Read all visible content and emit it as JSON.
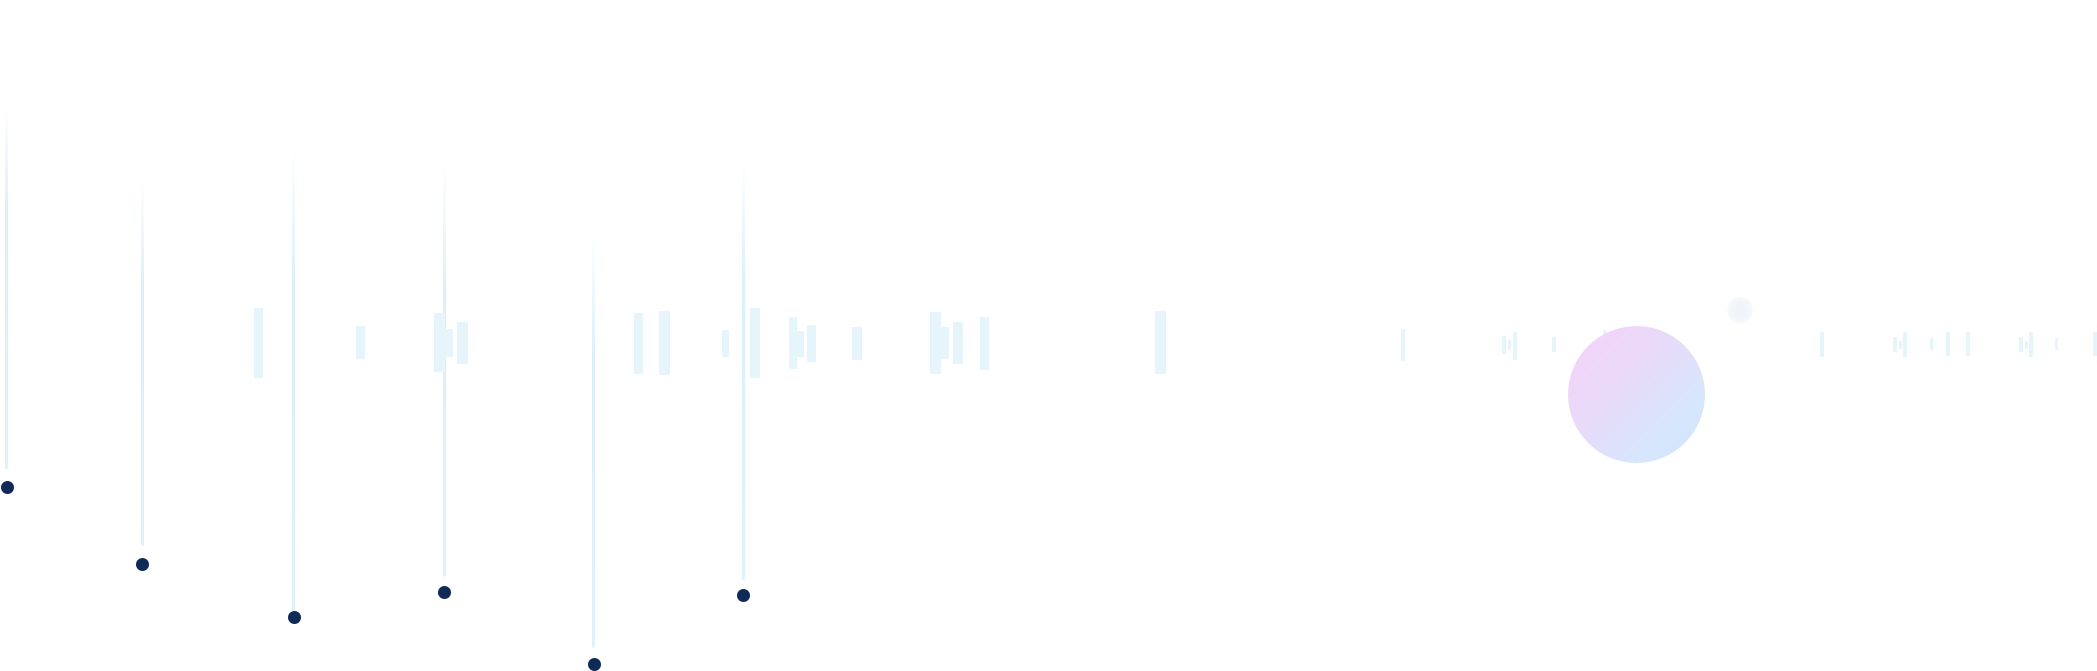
{
  "scene": {
    "background": "#ffffff",
    "accent_colors": {
      "pin_dot": "#0f2a57",
      "pin_stem": "#dff2fb",
      "bar": "#e6f5fb",
      "orb_gradient": [
        "#f5d2f8",
        "#d3e7fd"
      ]
    },
    "pins": [
      {
        "name": "pin-1"
      },
      {
        "name": "pin-2"
      },
      {
        "name": "pin-3"
      },
      {
        "name": "pin-4"
      },
      {
        "name": "pin-5"
      },
      {
        "name": "pin-6"
      }
    ],
    "decorations": [
      "pin-dot",
      "pin-stem",
      "waveform-bar",
      "gradient-orb",
      "halo"
    ]
  }
}
